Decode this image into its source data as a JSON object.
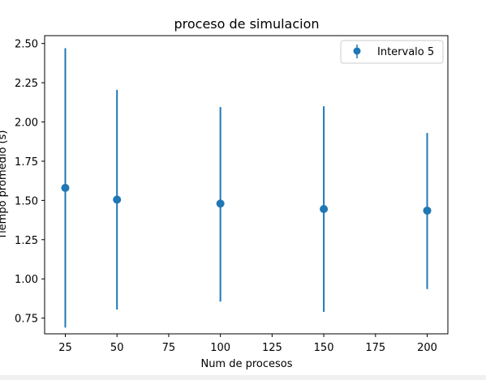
{
  "chart_data": {
    "type": "scatter",
    "title": "proceso de simulacion",
    "xlabel": "Num de procesos",
    "ylabel": "Tiempo promedio (s)",
    "xlim": [
      15,
      210
    ],
    "ylim": [
      0.65,
      2.55
    ],
    "xticks": [
      25,
      50,
      75,
      100,
      125,
      150,
      175,
      200
    ],
    "yticks": [
      0.75,
      1.0,
      1.25,
      1.5,
      1.75,
      2.0,
      2.25,
      2.5
    ],
    "legend_position": "top-right",
    "grid": false,
    "series": [
      {
        "name": "Intervalo 5",
        "color": "#1f77b4",
        "x": [
          25,
          50,
          100,
          150,
          200
        ],
        "y": [
          1.58,
          1.505,
          1.48,
          1.445,
          1.435
        ],
        "yerr_low": [
          0.69,
          0.805,
          0.855,
          0.79,
          0.935
        ],
        "yerr_high": [
          2.47,
          2.205,
          2.095,
          2.1,
          1.93
        ]
      }
    ]
  }
}
